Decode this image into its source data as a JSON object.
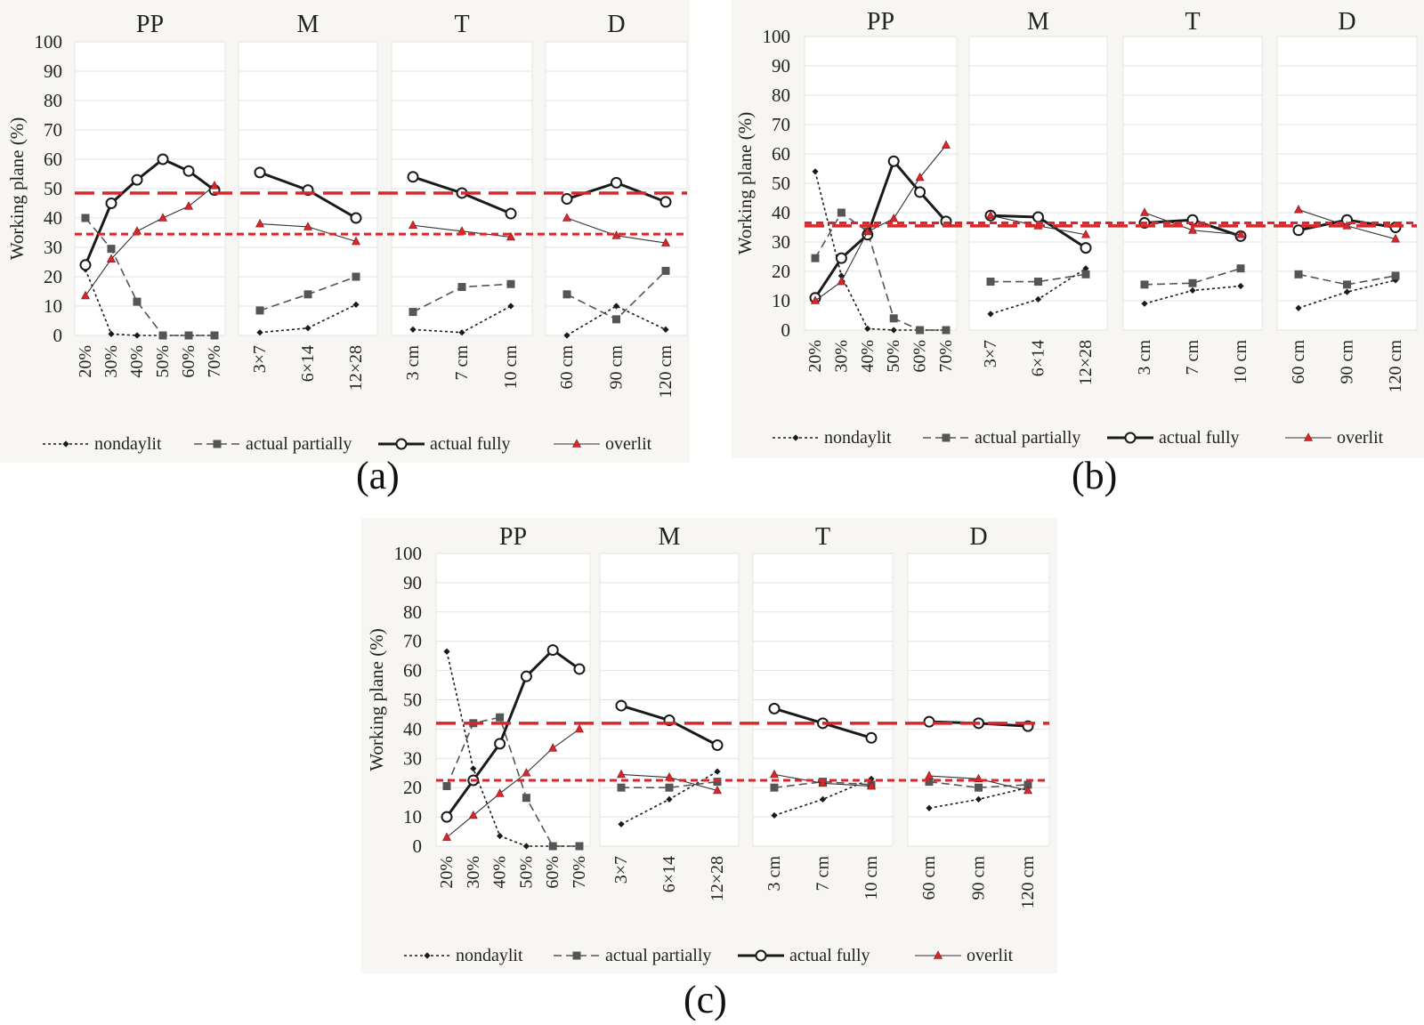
{
  "figure": {
    "label_a": "(a)",
    "label_b": "(b)",
    "label_c": "(c)"
  },
  "colors": {
    "panel_bg": "#f8f6f3",
    "plot_bg": "#ffffff",
    "grid": "#e2e2e2",
    "reference_line": "#d9262b",
    "nondaylit": "#1a1a1a",
    "actual_partially": "#555555",
    "actual_fully": "#1a1a1a",
    "overlit": "#d9262b"
  },
  "legend": {
    "nondaylit": "nondaylit",
    "actual_partially": "actual partially",
    "actual_fully": "actual fully",
    "overlit": "overlit"
  },
  "chart_data": [
    {
      "id": "a",
      "type": "line",
      "ylabel": "Working plane (%)",
      "ylim": [
        0,
        100
      ],
      "yticks": [
        0,
        10,
        20,
        30,
        40,
        50,
        60,
        70,
        80,
        90,
        100
      ],
      "grid": true,
      "legend_position": "bottom",
      "reference_lines": {
        "long_dash": 48.5,
        "short_dash": 34.5
      },
      "panels": [
        {
          "title": "PP",
          "categories": [
            "20%",
            "30%",
            "40%",
            "50%",
            "60%",
            "70%"
          ],
          "series": {
            "nondaylit": [
              22.5,
              0.5,
              0,
              0,
              0,
              0
            ],
            "actual_partially": [
              40,
              29.5,
              11.5,
              0,
              0,
              0
            ],
            "actual_fully": [
              24,
              45,
              53,
              60,
              56,
              49.5
            ],
            "overlit": [
              13.5,
              26,
              35.5,
              40,
              44,
              51
            ]
          }
        },
        {
          "title": "M",
          "categories": [
            "3×7",
            "6×14",
            "12×28"
          ],
          "series": {
            "nondaylit": [
              1,
              2.5,
              10.5
            ],
            "actual_partially": [
              8.5,
              14,
              20
            ],
            "actual_fully": [
              55.5,
              49.5,
              40
            ],
            "overlit": [
              38,
              37,
              32
            ]
          }
        },
        {
          "title": "T",
          "categories": [
            "3 cm",
            "7 cm",
            "10 cm"
          ],
          "series": {
            "nondaylit": [
              2,
              1,
              10
            ],
            "actual_partially": [
              8,
              16.5,
              17.5
            ],
            "actual_fully": [
              54,
              48.5,
              41.5
            ],
            "overlit": [
              37.5,
              35.5,
              33.5
            ]
          }
        },
        {
          "title": "D",
          "categories": [
            "60 cm",
            "90 cm",
            "120 cm"
          ],
          "series": {
            "nondaylit": [
              0,
              10,
              2
            ],
            "actual_partially": [
              14,
              5.5,
              22
            ],
            "actual_fully": [
              46.5,
              52,
              45.5
            ],
            "overlit": [
              40,
              34,
              31.5
            ]
          }
        }
      ]
    },
    {
      "id": "b",
      "type": "line",
      "ylabel": "Working plane (%)",
      "ylim": [
        0,
        100
      ],
      "yticks": [
        0,
        10,
        20,
        30,
        40,
        50,
        60,
        70,
        80,
        90,
        100
      ],
      "grid": true,
      "legend_position": "bottom",
      "reference_lines": {
        "long_dash": 35.5,
        "short_dash": 36.5
      },
      "panels": [
        {
          "title": "PP",
          "categories": [
            "20%",
            "30%",
            "40%",
            "50%",
            "60%",
            "70%"
          ],
          "series": {
            "nondaylit": [
              54,
              18.5,
              0.5,
              0,
              0,
              0
            ],
            "actual_partially": [
              24.5,
              40,
              33.5,
              4,
              0,
              0
            ],
            "actual_fully": [
              11,
              24.5,
              32.5,
              57.5,
              47,
              37
            ],
            "overlit": [
              10,
              16.5,
              33.5,
              38,
              52,
              63
            ]
          }
        },
        {
          "title": "M",
          "categories": [
            "3×7",
            "6×14",
            "12×28"
          ],
          "series": {
            "nondaylit": [
              5.5,
              10.5,
              21
            ],
            "actual_partially": [
              16.5,
              16.5,
              19
            ],
            "actual_fully": [
              39,
              38.5,
              28
            ],
            "overlit": [
              39,
              35.5,
              32.5
            ]
          }
        },
        {
          "title": "T",
          "categories": [
            "3 cm",
            "7 cm",
            "10 cm"
          ],
          "series": {
            "nondaylit": [
              9,
              13.5,
              15
            ],
            "actual_partially": [
              15.5,
              16,
              21
            ],
            "actual_fully": [
              36.5,
              37.5,
              32
            ],
            "overlit": [
              40,
              34,
              32.5
            ]
          }
        },
        {
          "title": "D",
          "categories": [
            "60 cm",
            "90 cm",
            "120 cm"
          ],
          "series": {
            "nondaylit": [
              7.5,
              13,
              17
            ],
            "actual_partially": [
              19,
              15.5,
              18.5
            ],
            "actual_fully": [
              34,
              37.5,
              35
            ],
            "overlit": [
              41,
              35.5,
              31
            ]
          }
        }
      ]
    },
    {
      "id": "c",
      "type": "line",
      "ylabel": "Working plane (%)",
      "ylim": [
        0,
        100
      ],
      "yticks": [
        0,
        10,
        20,
        30,
        40,
        50,
        60,
        70,
        80,
        90,
        100
      ],
      "grid": true,
      "legend_position": "bottom",
      "reference_lines": {
        "long_dash": 42,
        "short_dash": 22.5
      },
      "panels": [
        {
          "title": "PP",
          "categories": [
            "20%",
            "30%",
            "40%",
            "50%",
            "60%",
            "70%"
          ],
          "series": {
            "nondaylit": [
              66.5,
              26.5,
              3.5,
              0,
              0,
              0
            ],
            "actual_partially": [
              20.5,
              42,
              44,
              16.5,
              0,
              0
            ],
            "actual_fully": [
              10,
              22.5,
              35,
              58,
              67,
              60.5
            ],
            "overlit": [
              3,
              10.5,
              18,
              25,
              33.5,
              40
            ]
          }
        },
        {
          "title": "M",
          "categories": [
            "3×7",
            "6×14",
            "12×28"
          ],
          "series": {
            "nondaylit": [
              7.5,
              16,
              25.5
            ],
            "actual_partially": [
              20,
              20,
              22
            ],
            "actual_fully": [
              48,
              43,
              34.5
            ],
            "overlit": [
              24.5,
              23.5,
              19
            ]
          }
        },
        {
          "title": "T",
          "categories": [
            "3 cm",
            "7 cm",
            "10 cm"
          ],
          "series": {
            "nondaylit": [
              10.5,
              16,
              23
            ],
            "actual_partially": [
              20,
              22,
              21
            ],
            "actual_fully": [
              47,
              42,
              37
            ],
            "overlit": [
              24.5,
              21.5,
              20.5
            ]
          }
        },
        {
          "title": "D",
          "categories": [
            "60 cm",
            "90 cm",
            "120 cm"
          ],
          "series": {
            "nondaylit": [
              13,
              16,
              20
            ],
            "actual_partially": [
              22,
              20,
              21
            ],
            "actual_fully": [
              42.5,
              42,
              41
            ],
            "overlit": [
              24,
              23,
              19
            ]
          }
        }
      ]
    }
  ]
}
